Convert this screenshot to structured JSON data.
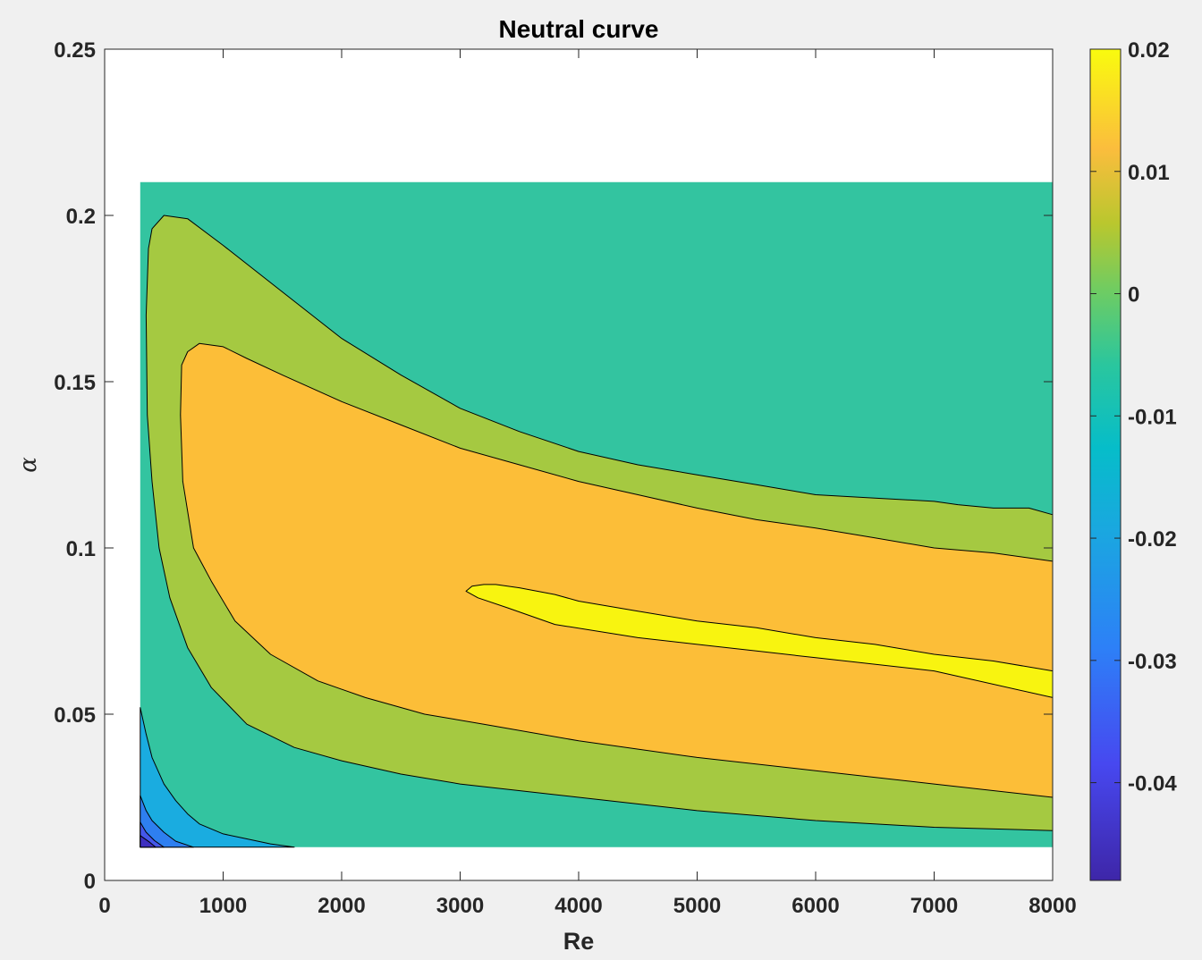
{
  "chart_data": {
    "type": "contourf",
    "title": "Neutral curve",
    "xlabel": "Re",
    "ylabel": "α",
    "xlim": [
      0,
      8000
    ],
    "ylim": [
      0,
      0.25
    ],
    "xticks": [
      0,
      1000,
      2000,
      3000,
      4000,
      5000,
      6000,
      7000,
      8000
    ],
    "xtick_labels": [
      "0",
      "1000",
      "2000",
      "3000",
      "4000",
      "5000",
      "6000",
      "7000",
      "8000"
    ],
    "yticks": [
      0,
      0.05,
      0.1,
      0.15,
      0.2,
      0.25
    ],
    "ytick_labels": [
      "0",
      "0.05",
      "0.1",
      "0.15",
      "0.2",
      "0.25"
    ],
    "data_extent": {
      "x": [
        300,
        8000
      ],
      "y": [
        0.01,
        0.21
      ]
    },
    "colorbar": {
      "range": [
        -0.048,
        0.02
      ],
      "ticks": [
        0.02,
        0.01,
        0,
        -0.01,
        -0.02,
        -0.03,
        -0.04
      ],
      "tick_labels": [
        "0.02",
        "0.01",
        "0",
        "-0.01",
        "-0.02",
        "-0.03",
        "-0.04"
      ],
      "colormap": "parula"
    },
    "grid": false,
    "levels": [
      {
        "name": "level -0.01",
        "fill": "#33c4a0",
        "points": [
          [
            300,
            0.21
          ],
          [
            8000,
            0.21
          ],
          [
            8000,
            0.01
          ],
          [
            300,
            0.01
          ]
        ]
      },
      {
        "name": "level -0.02",
        "fill": "#1aace0",
        "points": [
          [
            300,
            0.01
          ],
          [
            300,
            0.052
          ],
          [
            350,
            0.044
          ],
          [
            400,
            0.037
          ],
          [
            500,
            0.029
          ],
          [
            600,
            0.024
          ],
          [
            700,
            0.02
          ],
          [
            800,
            0.017
          ],
          [
            1000,
            0.014
          ],
          [
            1200,
            0.0125
          ],
          [
            1400,
            0.011
          ],
          [
            1600,
            0.01
          ]
        ]
      },
      {
        "name": "level -0.03",
        "fill": "#2e7ff0",
        "points": [
          [
            300,
            0.01
          ],
          [
            300,
            0.0255
          ],
          [
            350,
            0.021
          ],
          [
            400,
            0.018
          ],
          [
            500,
            0.0145
          ],
          [
            600,
            0.0118
          ],
          [
            750,
            0.01
          ]
        ]
      },
      {
        "name": "level -0.04",
        "fill": "#4457ea",
        "points": [
          [
            300,
            0.01
          ],
          [
            300,
            0.0175
          ],
          [
            350,
            0.0145
          ],
          [
            420,
            0.012
          ],
          [
            500,
            0.01
          ]
        ]
      },
      {
        "name": "level -0.048",
        "fill": "#3d2fc0",
        "points": [
          [
            300,
            0.01
          ],
          [
            300,
            0.0135
          ],
          [
            380,
            0.0115
          ],
          [
            430,
            0.01
          ]
        ]
      },
      {
        "name": "level 0",
        "fill": "#a5c941",
        "points": [
          [
            8000,
            0.11
          ],
          [
            7800,
            0.112
          ],
          [
            7500,
            0.112
          ],
          [
            7200,
            0.113
          ],
          [
            7000,
            0.114
          ],
          [
            6500,
            0.115
          ],
          [
            6000,
            0.116
          ],
          [
            5500,
            0.119
          ],
          [
            5000,
            0.122
          ],
          [
            4500,
            0.125
          ],
          [
            4000,
            0.129
          ],
          [
            3500,
            0.135
          ],
          [
            3000,
            0.142
          ],
          [
            2500,
            0.152
          ],
          [
            2000,
            0.163
          ],
          [
            1500,
            0.177
          ],
          [
            1000,
            0.191
          ],
          [
            700,
            0.199
          ],
          [
            500,
            0.2
          ],
          [
            400,
            0.196
          ],
          [
            370,
            0.19
          ],
          [
            350,
            0.17
          ],
          [
            360,
            0.14
          ],
          [
            400,
            0.12
          ],
          [
            460,
            0.1
          ],
          [
            550,
            0.085
          ],
          [
            700,
            0.07
          ],
          [
            900,
            0.058
          ],
          [
            1200,
            0.047
          ],
          [
            1600,
            0.04
          ],
          [
            2000,
            0.036
          ],
          [
            2500,
            0.032
          ],
          [
            3000,
            0.029
          ],
          [
            4000,
            0.025
          ],
          [
            5000,
            0.021
          ],
          [
            6000,
            0.018
          ],
          [
            7000,
            0.016
          ],
          [
            8000,
            0.015
          ]
        ]
      },
      {
        "name": "level 0.01",
        "fill": "#fcbe38",
        "points": [
          [
            8000,
            0.096
          ],
          [
            7500,
            0.0985
          ],
          [
            7000,
            0.1
          ],
          [
            6500,
            0.103
          ],
          [
            6000,
            0.106
          ],
          [
            5500,
            0.1085
          ],
          [
            5000,
            0.112
          ],
          [
            4500,
            0.116
          ],
          [
            4000,
            0.12
          ],
          [
            3500,
            0.125
          ],
          [
            3000,
            0.13
          ],
          [
            2500,
            0.137
          ],
          [
            2000,
            0.144
          ],
          [
            1500,
            0.152
          ],
          [
            1200,
            0.157
          ],
          [
            1000,
            0.1605
          ],
          [
            800,
            0.1615
          ],
          [
            700,
            0.159
          ],
          [
            650,
            0.155
          ],
          [
            640,
            0.14
          ],
          [
            660,
            0.12
          ],
          [
            750,
            0.1
          ],
          [
            900,
            0.09
          ],
          [
            1100,
            0.078
          ],
          [
            1400,
            0.068
          ],
          [
            1800,
            0.06
          ],
          [
            2200,
            0.055
          ],
          [
            2700,
            0.05
          ],
          [
            3200,
            0.047
          ],
          [
            4000,
            0.042
          ],
          [
            5000,
            0.037
          ],
          [
            6000,
            0.033
          ],
          [
            7000,
            0.029
          ],
          [
            8000,
            0.025
          ]
        ]
      },
      {
        "name": "level 0.02",
        "fill": "#f8f410",
        "points": [
          [
            8000,
            0.063
          ],
          [
            7500,
            0.066
          ],
          [
            7000,
            0.068
          ],
          [
            6500,
            0.071
          ],
          [
            6000,
            0.073
          ],
          [
            5500,
            0.076
          ],
          [
            5000,
            0.078
          ],
          [
            4500,
            0.081
          ],
          [
            4000,
            0.084
          ],
          [
            3800,
            0.086
          ],
          [
            3500,
            0.088
          ],
          [
            3300,
            0.089
          ],
          [
            3200,
            0.089
          ],
          [
            3100,
            0.0885
          ],
          [
            3050,
            0.087
          ],
          [
            3150,
            0.085
          ],
          [
            3400,
            0.082
          ],
          [
            3800,
            0.077
          ],
          [
            4500,
            0.073
          ],
          [
            5000,
            0.071
          ],
          [
            5500,
            0.069
          ],
          [
            6000,
            0.067
          ],
          [
            7000,
            0.063
          ],
          [
            8000,
            0.055
          ]
        ]
      }
    ]
  }
}
